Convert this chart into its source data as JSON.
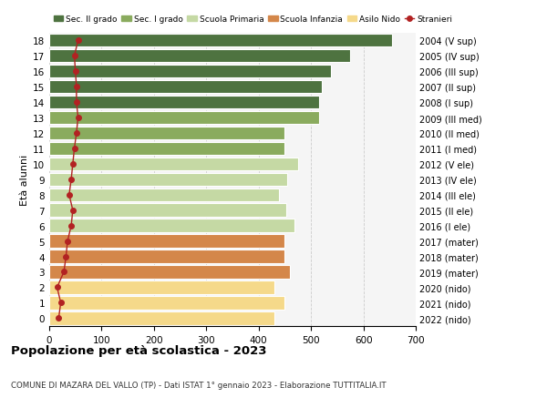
{
  "ages": [
    0,
    1,
    2,
    3,
    4,
    5,
    6,
    7,
    8,
    9,
    10,
    11,
    12,
    13,
    14,
    15,
    16,
    17,
    18
  ],
  "years_labels": [
    "2022 (nido)",
    "2021 (nido)",
    "2020 (nido)",
    "2019 (mater)",
    "2018 (mater)",
    "2017 (mater)",
    "2016 (I ele)",
    "2015 (II ele)",
    "2014 (III ele)",
    "2013 (IV ele)",
    "2012 (V ele)",
    "2011 (I med)",
    "2010 (II med)",
    "2009 (III med)",
    "2008 (I sup)",
    "2007 (II sup)",
    "2006 (III sup)",
    "2005 (IV sup)",
    "2004 (V sup)"
  ],
  "bar_values": [
    430,
    450,
    430,
    460,
    450,
    450,
    468,
    453,
    438,
    455,
    475,
    450,
    450,
    515,
    515,
    520,
    538,
    575,
    655
  ],
  "stranieri_values": [
    18,
    22,
    15,
    28,
    32,
    35,
    42,
    45,
    38,
    42,
    45,
    48,
    52,
    55,
    52,
    52,
    50,
    48,
    55
  ],
  "bar_colors": [
    "#f5d98a",
    "#f5d98a",
    "#f5d98a",
    "#d4874a",
    "#d4874a",
    "#d4874a",
    "#c5d9a4",
    "#c5d9a4",
    "#c5d9a4",
    "#c5d9a4",
    "#c5d9a4",
    "#8aab5e",
    "#8aab5e",
    "#8aab5e",
    "#4e7340",
    "#4e7340",
    "#4e7340",
    "#4e7340",
    "#4e7340"
  ],
  "legend_labels": [
    "Sec. II grado",
    "Sec. I grado",
    "Scuola Primaria",
    "Scuola Infanzia",
    "Asilo Nido",
    "Stranieri"
  ],
  "legend_colors": [
    "#4e7340",
    "#8aab5e",
    "#c5d9a4",
    "#d4874a",
    "#f5d98a",
    "#b22222"
  ],
  "stranieri_color": "#b22222",
  "title": "Popolazione per età scolastica - 2023",
  "subtitle": "COMUNE DI MAZARA DEL VALLO (TP) - Dati ISTAT 1° gennaio 2023 - Elaborazione TUTTITALIA.IT",
  "ylabel_left": "Età alunni",
  "xlim": [
    0,
    700
  ],
  "xticks": [
    0,
    100,
    200,
    300,
    400,
    500,
    600,
    700
  ],
  "bg_color": "#ffffff",
  "bar_bg_color": "#f5f5f5"
}
